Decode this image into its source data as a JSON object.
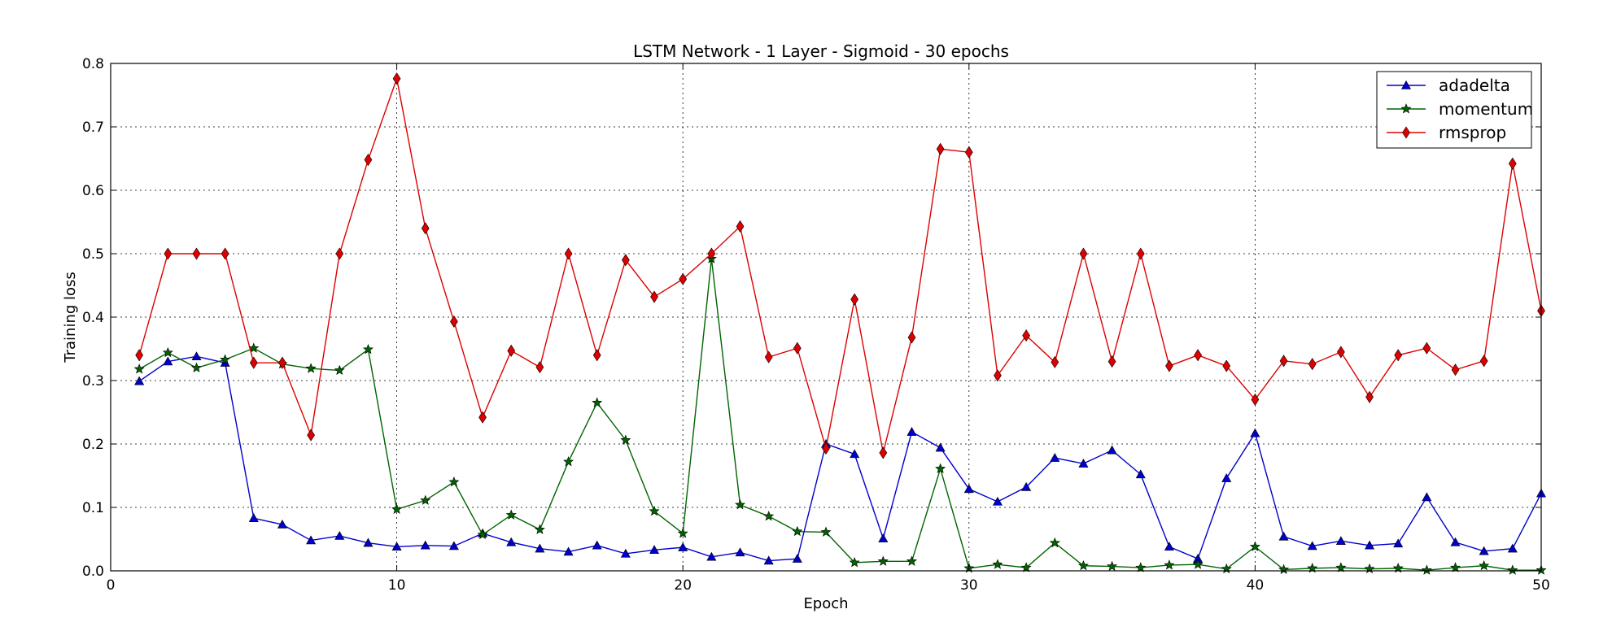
{
  "chart_data": {
    "type": "line",
    "title": "LSTM Network - 1 Layer - Sigmoid - 30 epochs",
    "xlabel": "Epoch",
    "ylabel": "Training loss",
    "xlim": [
      0,
      50
    ],
    "ylim": [
      0,
      0.8
    ],
    "xticks": [
      "0",
      "10",
      "20",
      "30",
      "40",
      "50"
    ],
    "yticks": [
      "0.0",
      "0.1",
      "0.2",
      "0.3",
      "0.4",
      "0.5",
      "0.6",
      "0.7",
      "0.8"
    ],
    "grid": true,
    "legend_position": "top-right",
    "x": [
      1,
      2,
      3,
      4,
      5,
      6,
      7,
      8,
      9,
      10,
      11,
      12,
      13,
      14,
      15,
      16,
      17,
      18,
      19,
      20,
      21,
      22,
      23,
      24,
      25,
      26,
      27,
      28,
      29,
      30,
      31,
      32,
      33,
      34,
      35,
      36,
      37,
      38,
      39,
      40,
      41,
      42,
      43,
      44,
      45,
      46,
      47,
      48,
      49,
      50
    ],
    "series": [
      {
        "name": "adadelta",
        "color": "#0000cc",
        "marker": "triangle",
        "values": [
          0.299,
          0.33,
          0.338,
          0.328,
          0.083,
          0.073,
          0.048,
          0.055,
          0.044,
          0.038,
          0.04,
          0.039,
          0.059,
          0.045,
          0.035,
          0.03,
          0.04,
          0.027,
          0.033,
          0.037,
          0.022,
          0.029,
          0.016,
          0.019,
          0.2,
          0.184,
          0.051,
          0.219,
          0.194,
          0.129,
          0.109,
          0.132,
          0.178,
          0.169,
          0.19,
          0.152,
          0.038,
          0.019,
          0.146,
          0.217,
          0.054,
          0.039,
          0.047,
          0.04,
          0.043,
          0.116,
          0.045,
          0.031,
          0.035,
          0.122
        ]
      },
      {
        "name": "momentum",
        "color": "#006400",
        "marker": "star",
        "values": [
          0.318,
          0.344,
          0.32,
          0.333,
          0.351,
          0.326,
          0.319,
          0.316,
          0.349,
          0.097,
          0.111,
          0.14,
          0.057,
          0.088,
          0.065,
          0.172,
          0.265,
          0.206,
          0.094,
          0.059,
          0.492,
          0.104,
          0.086,
          0.062,
          0.061,
          0.013,
          0.015,
          0.015,
          0.161,
          0.004,
          0.01,
          0.005,
          0.044,
          0.008,
          0.007,
          0.005,
          0.009,
          0.01,
          0.003,
          0.038,
          0.002,
          0.004,
          0.005,
          0.003,
          0.004,
          0.001,
          0.005,
          0.008,
          0.001,
          0.001
        ]
      },
      {
        "name": "rmsprop",
        "color": "#dd0000",
        "marker": "diamond",
        "values": [
          0.34,
          0.5,
          0.5,
          0.5,
          0.328,
          0.328,
          0.214,
          0.5,
          0.648,
          0.776,
          0.54,
          0.393,
          0.242,
          0.347,
          0.321,
          0.5,
          0.34,
          0.49,
          0.432,
          0.46,
          0.5,
          0.543,
          0.337,
          0.351,
          0.193,
          0.428,
          0.186,
          0.368,
          0.665,
          0.66,
          0.308,
          0.371,
          0.329,
          0.5,
          0.33,
          0.5,
          0.323,
          0.34,
          0.323,
          0.27,
          0.331,
          0.326,
          0.345,
          0.274,
          0.34,
          0.351,
          0.317,
          0.331,
          0.642,
          0.41
        ]
      }
    ]
  }
}
